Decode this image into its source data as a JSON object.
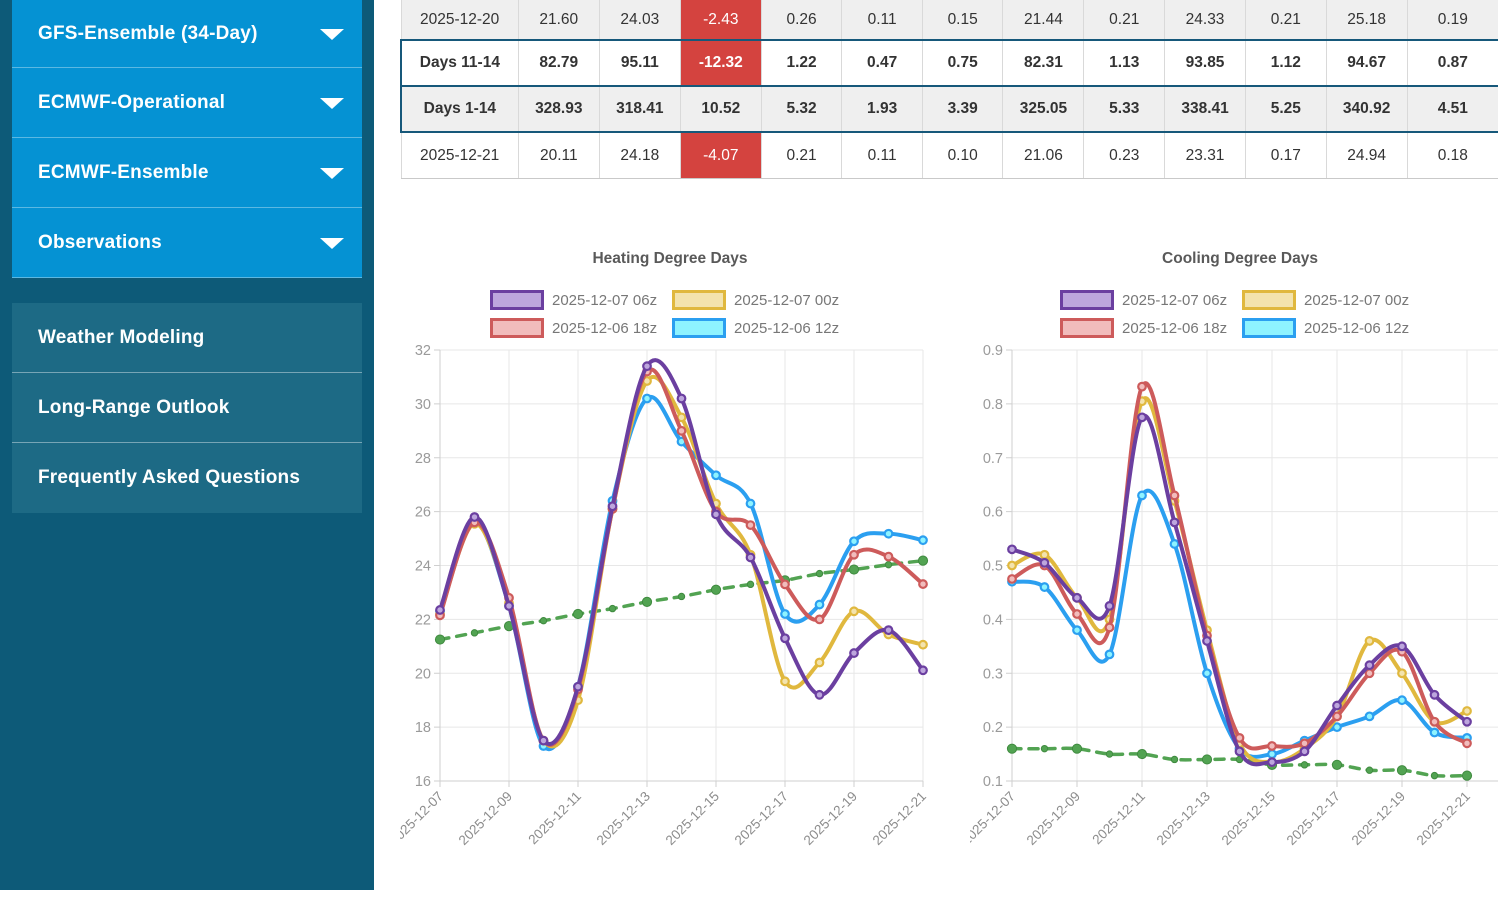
{
  "sidebar": {
    "model_items": [
      "GFS-Ensemble (34-Day)",
      "ECMWF-Operational",
      "ECMWF-Ensemble",
      "Observations"
    ],
    "nav_items": [
      "Weather Modeling",
      "Long-Range Outlook",
      "Frequently Asked Questions"
    ]
  },
  "colors": {
    "sidebar_bg": "#0d5a78",
    "sidebar_button_blue": "#0592d3",
    "sidebar_nav_teal": "#1d6a85",
    "table_negative_red": "#d4433f",
    "table_summary_border": "#16587a",
    "series_purple": "#6b3fa0",
    "series_yellow": "#e0b83e",
    "series_red": "#cd5b5b",
    "series_blue": "#2b9ff0",
    "series_green_dashed": "#52a352"
  },
  "table": {
    "rows": [
      {
        "label": "2025-12-20",
        "kind": "data",
        "shaded": true,
        "red_cols": [
          2
        ],
        "values": [
          "21.60",
          "24.03",
          "-2.43",
          "0.26",
          "0.11",
          "0.15",
          "21.44",
          "0.21",
          "24.33",
          "0.21",
          "25.18",
          "0.19"
        ]
      },
      {
        "label": "Days 11-14",
        "kind": "summary",
        "shaded": false,
        "red_cols": [
          2
        ],
        "values": [
          "82.79",
          "95.11",
          "-12.32",
          "1.22",
          "0.47",
          "0.75",
          "82.31",
          "1.13",
          "93.85",
          "1.12",
          "94.67",
          "0.87"
        ]
      },
      {
        "label": "Days 1-14",
        "kind": "summary",
        "shaded": true,
        "red_cols": [],
        "values": [
          "328.93",
          "318.41",
          "10.52",
          "5.32",
          "1.93",
          "3.39",
          "325.05",
          "5.33",
          "338.41",
          "5.25",
          "340.92",
          "4.51"
        ]
      },
      {
        "label": "2025-12-21",
        "kind": "data-last",
        "shaded": false,
        "red_cols": [
          2
        ],
        "values": [
          "20.11",
          "24.18",
          "-4.07",
          "0.21",
          "0.11",
          "0.10",
          "21.06",
          "0.23",
          "23.31",
          "0.17",
          "24.94",
          "0.18"
        ]
      }
    ]
  },
  "chart_data": [
    {
      "type": "line",
      "title": "Heating Degree Days",
      "x": [
        "2025-12-07",
        "2025-12-08",
        "2025-12-09",
        "2025-12-10",
        "2025-12-11",
        "2025-12-12",
        "2025-12-13",
        "2025-12-14",
        "2025-12-15",
        "2025-12-16",
        "2025-12-17",
        "2025-12-18",
        "2025-12-19",
        "2025-12-20",
        "2025-12-21"
      ],
      "x_tick_labels": [
        "2025-12-07",
        "2025-12-09",
        "2025-12-11",
        "2025-12-13",
        "2025-12-15",
        "2025-12-17",
        "2025-12-19",
        "2025-12-21"
      ],
      "ylim": [
        16,
        32
      ],
      "yticks": [
        32,
        30,
        28,
        26,
        24,
        22,
        20,
        18,
        16
      ],
      "grid": true,
      "legend_position": "top",
      "series": [
        {
          "name": "2025-12-07 06z",
          "color": "#6b3fa0",
          "marker_fill": "#bda6dd",
          "in_legend": true,
          "values": [
            22.35,
            25.8,
            22.5,
            17.5,
            19.5,
            26.2,
            31.4,
            30.2,
            25.9,
            24.3,
            21.3,
            19.2,
            20.75,
            21.6,
            20.11
          ]
        },
        {
          "name": "2025-12-07 00z",
          "color": "#e0b83e",
          "marker_fill": "#f3e3ad",
          "in_legend": true,
          "values": [
            22.2,
            25.55,
            22.6,
            17.5,
            19.0,
            26.1,
            30.85,
            29.5,
            26.3,
            24.4,
            19.7,
            20.4,
            22.3,
            21.44,
            21.06
          ]
        },
        {
          "name": "2025-12-06 18z",
          "color": "#cd5b5b",
          "marker_fill": "#f1bcbc",
          "in_legend": true,
          "values": [
            22.15,
            25.6,
            22.8,
            17.5,
            19.4,
            26.1,
            31.2,
            29.0,
            26.0,
            25.5,
            23.3,
            22.0,
            24.4,
            24.33,
            23.31
          ]
        },
        {
          "name": "2025-12-06 12z",
          "color": "#2b9ff0",
          "marker_fill": "#8ef3ff",
          "in_legend": true,
          "values": [
            22.3,
            25.6,
            22.5,
            17.3,
            19.5,
            26.4,
            30.2,
            28.6,
            27.35,
            26.3,
            22.2,
            22.55,
            24.9,
            25.18,
            24.94
          ]
        },
        {
          "name": "normal",
          "color": "#52a352",
          "marker_fill": "#52a352",
          "dashed": true,
          "in_legend": false,
          "values": [
            21.25,
            21.5,
            21.75,
            21.95,
            22.2,
            22.4,
            22.65,
            22.85,
            23.1,
            23.3,
            23.45,
            23.7,
            23.85,
            24.03,
            24.18
          ]
        }
      ]
    },
    {
      "type": "line",
      "title": "Cooling Degree Days",
      "x": [
        "2025-12-07",
        "2025-12-08",
        "2025-12-09",
        "2025-12-10",
        "2025-12-11",
        "2025-12-12",
        "2025-12-13",
        "2025-12-14",
        "2025-12-15",
        "2025-12-16",
        "2025-12-17",
        "2025-12-18",
        "2025-12-19",
        "2025-12-20",
        "2025-12-21"
      ],
      "x_tick_labels": [
        "2025-12-07",
        "2025-12-09",
        "2025-12-11",
        "2025-12-13",
        "2025-12-15",
        "2025-12-17",
        "2025-12-19",
        "2025-12-21"
      ],
      "ylim": [
        0.1,
        0.9
      ],
      "yticks": [
        0.9,
        0.8,
        0.7,
        0.6,
        0.5,
        0.4,
        0.3,
        0.2,
        0.1
      ],
      "grid": true,
      "legend_position": "top",
      "series": [
        {
          "name": "2025-12-07 06z",
          "color": "#6b3fa0",
          "marker_fill": "#bda6dd",
          "in_legend": true,
          "values": [
            0.53,
            0.505,
            0.44,
            0.425,
            0.775,
            0.58,
            0.36,
            0.155,
            0.135,
            0.155,
            0.24,
            0.315,
            0.35,
            0.26,
            0.21
          ]
        },
        {
          "name": "2025-12-07 00z",
          "color": "#e0b83e",
          "marker_fill": "#f3e3ad",
          "in_legend": true,
          "values": [
            0.5,
            0.52,
            0.44,
            0.4,
            0.805,
            0.62,
            0.38,
            0.17,
            0.135,
            0.16,
            0.22,
            0.36,
            0.3,
            0.21,
            0.23
          ]
        },
        {
          "name": "2025-12-06 18z",
          "color": "#cd5b5b",
          "marker_fill": "#f1bcbc",
          "in_legend": true,
          "values": [
            0.475,
            0.5,
            0.41,
            0.385,
            0.832,
            0.63,
            0.37,
            0.18,
            0.165,
            0.17,
            0.22,
            0.3,
            0.34,
            0.21,
            0.17
          ]
        },
        {
          "name": "2025-12-06 12z",
          "color": "#2b9ff0",
          "marker_fill": "#8ef3ff",
          "in_legend": true,
          "values": [
            0.47,
            0.46,
            0.38,
            0.335,
            0.63,
            0.54,
            0.3,
            0.16,
            0.15,
            0.175,
            0.2,
            0.22,
            0.25,
            0.19,
            0.18
          ]
        },
        {
          "name": "normal",
          "color": "#52a352",
          "marker_fill": "#52a352",
          "dashed": true,
          "in_legend": false,
          "values": [
            0.16,
            0.16,
            0.16,
            0.15,
            0.15,
            0.14,
            0.14,
            0.14,
            0.13,
            0.13,
            0.13,
            0.12,
            0.12,
            0.11,
            0.11
          ]
        }
      ]
    }
  ]
}
